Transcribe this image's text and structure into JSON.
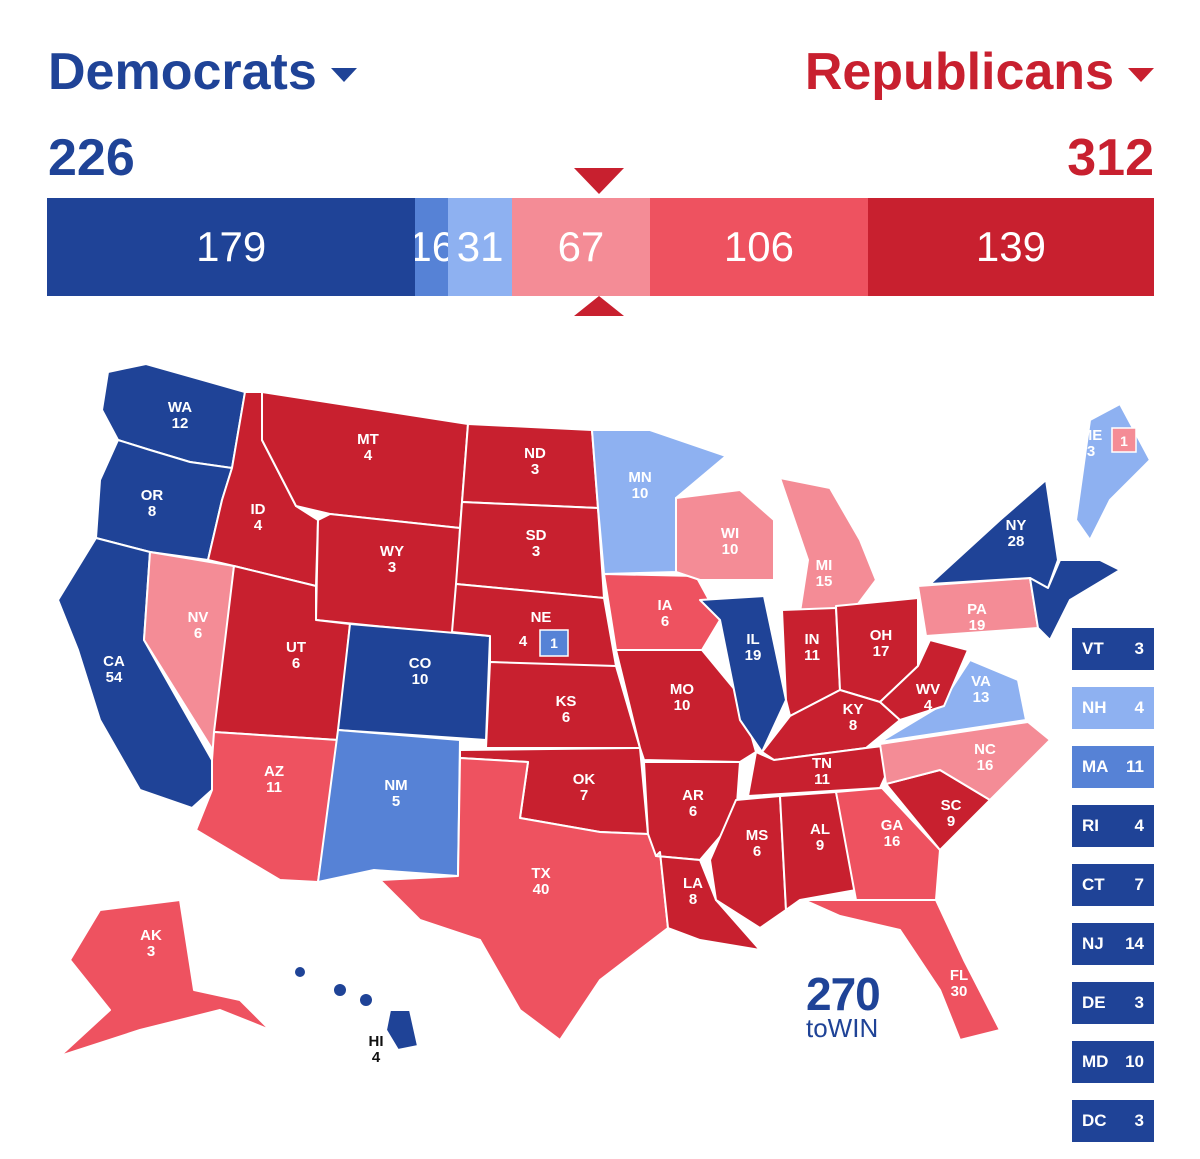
{
  "header": {
    "dem_label": "Democrats",
    "rep_label": "Republicans",
    "dem_total": "226",
    "rep_total": "312"
  },
  "colors": {
    "safe_d": "#1f4397",
    "likely_d": "#5682d6",
    "lean_d": "#8eb1f1",
    "lean_r": "#f48c96",
    "likely_r": "#ee5260",
    "safe_r": "#c8202f"
  },
  "bar": [
    {
      "label": "179",
      "value": 179,
      "color": "safe_d"
    },
    {
      "label": "16",
      "value": 16,
      "color": "likely_d"
    },
    {
      "label": "31",
      "value": 31,
      "color": "lean_d"
    },
    {
      "label": "67",
      "value": 67,
      "color": "lean_r"
    },
    {
      "label": "106",
      "value": 106,
      "color": "likely_r"
    },
    {
      "label": "139",
      "value": 139,
      "color": "safe_r"
    }
  ],
  "states": {
    "WA": {
      "abbr": "WA",
      "ev": "12",
      "rating": "safe_d"
    },
    "OR": {
      "abbr": "OR",
      "ev": "8",
      "rating": "safe_d"
    },
    "CA": {
      "abbr": "CA",
      "ev": "54",
      "rating": "safe_d"
    },
    "NV": {
      "abbr": "NV",
      "ev": "6",
      "rating": "lean_r"
    },
    "ID": {
      "abbr": "ID",
      "ev": "4",
      "rating": "safe_r"
    },
    "MT": {
      "abbr": "MT",
      "ev": "4",
      "rating": "safe_r"
    },
    "WY": {
      "abbr": "WY",
      "ev": "3",
      "rating": "safe_r"
    },
    "UT": {
      "abbr": "UT",
      "ev": "6",
      "rating": "safe_r"
    },
    "AZ": {
      "abbr": "AZ",
      "ev": "11",
      "rating": "likely_r"
    },
    "CO": {
      "abbr": "CO",
      "ev": "10",
      "rating": "safe_d"
    },
    "NM": {
      "abbr": "NM",
      "ev": "5",
      "rating": "likely_d"
    },
    "ND": {
      "abbr": "ND",
      "ev": "3",
      "rating": "safe_r"
    },
    "SD": {
      "abbr": "SD",
      "ev": "3",
      "rating": "safe_r"
    },
    "NE": {
      "abbr": "NE",
      "ev": "4",
      "rating": "safe_r",
      "district": "1"
    },
    "KS": {
      "abbr": "KS",
      "ev": "6",
      "rating": "safe_r"
    },
    "OK": {
      "abbr": "OK",
      "ev": "7",
      "rating": "safe_r"
    },
    "TX": {
      "abbr": "TX",
      "ev": "40",
      "rating": "likely_r"
    },
    "MN": {
      "abbr": "MN",
      "ev": "10",
      "rating": "lean_d"
    },
    "IA": {
      "abbr": "IA",
      "ev": "6",
      "rating": "likely_r"
    },
    "MO": {
      "abbr": "MO",
      "ev": "10",
      "rating": "safe_r"
    },
    "AR": {
      "abbr": "AR",
      "ev": "6",
      "rating": "safe_r"
    },
    "LA": {
      "abbr": "LA",
      "ev": "8",
      "rating": "safe_r"
    },
    "WI": {
      "abbr": "WI",
      "ev": "10",
      "rating": "lean_r"
    },
    "IL": {
      "abbr": "IL",
      "ev": "19",
      "rating": "safe_d"
    },
    "MI": {
      "abbr": "MI",
      "ev": "15",
      "rating": "lean_r"
    },
    "IN": {
      "abbr": "IN",
      "ev": "11",
      "rating": "safe_r"
    },
    "OH": {
      "abbr": "OH",
      "ev": "17",
      "rating": "safe_r"
    },
    "KY": {
      "abbr": "KY",
      "ev": "8",
      "rating": "safe_r"
    },
    "TN": {
      "abbr": "TN",
      "ev": "11",
      "rating": "safe_r"
    },
    "MS": {
      "abbr": "MS",
      "ev": "6",
      "rating": "safe_r"
    },
    "AL": {
      "abbr": "AL",
      "ev": "9",
      "rating": "safe_r"
    },
    "GA": {
      "abbr": "GA",
      "ev": "16",
      "rating": "likely_r"
    },
    "FL": {
      "abbr": "FL",
      "ev": "30",
      "rating": "likely_r"
    },
    "SC": {
      "abbr": "SC",
      "ev": "9",
      "rating": "safe_r"
    },
    "NC": {
      "abbr": "NC",
      "ev": "16",
      "rating": "lean_r"
    },
    "VA": {
      "abbr": "VA",
      "ev": "13",
      "rating": "lean_d"
    },
    "WV": {
      "abbr": "WV",
      "ev": "4",
      "rating": "safe_r"
    },
    "PA": {
      "abbr": "PA",
      "ev": "19",
      "rating": "lean_r"
    },
    "NY": {
      "abbr": "NY",
      "ev": "28",
      "rating": "safe_d"
    },
    "ME": {
      "abbr": "ME",
      "ev": "3",
      "rating": "lean_d",
      "district": "1"
    },
    "AK": {
      "abbr": "AK",
      "ev": "3",
      "rating": "likely_r"
    },
    "HI": {
      "abbr": "HI",
      "ev": "4",
      "rating": "safe_d"
    }
  },
  "small_states": [
    {
      "abbr": "VT",
      "ev": "3",
      "rating": "safe_d"
    },
    {
      "abbr": "NH",
      "ev": "4",
      "rating": "lean_d"
    },
    {
      "abbr": "MA",
      "ev": "11",
      "rating": "likely_d"
    },
    {
      "abbr": "RI",
      "ev": "4",
      "rating": "safe_d"
    },
    {
      "abbr": "CT",
      "ev": "7",
      "rating": "safe_d"
    },
    {
      "abbr": "NJ",
      "ev": "14",
      "rating": "safe_d"
    },
    {
      "abbr": "DE",
      "ev": "3",
      "rating": "safe_d"
    },
    {
      "abbr": "MD",
      "ev": "10",
      "rating": "safe_d"
    },
    {
      "abbr": "DC",
      "ev": "3",
      "rating": "safe_d"
    }
  ],
  "logo": {
    "big": "270",
    "small": "toWIN"
  }
}
